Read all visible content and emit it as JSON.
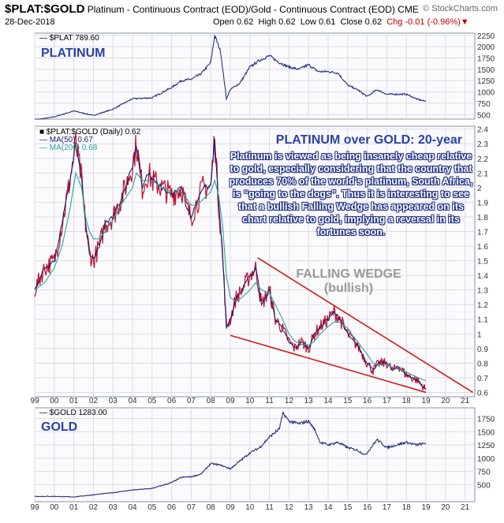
{
  "header": {
    "symbol": "$PLAT:$GOLD",
    "description": "Platinum - Continuous Contract (EOD)/Gold - Continuous Contract (EOD)",
    "exchange": "CME",
    "brand": "© StockCharts.com",
    "date": "28-Dec-2018",
    "open": "Open 0.62",
    "high": "High 0.62",
    "low": "Low 0.61",
    "close": "Close 0.62",
    "chg": "Chg -0.01 (-0.96%)"
  },
  "colors": {
    "price": "#2a2f7a",
    "ratio_ma50": "#1a1f6e",
    "ratio_ma200": "#2aa39a",
    "ratio_line": "#c01030",
    "wedge": "#d41a1a",
    "label": "#2b3fa8",
    "panel_bg": "#ffffff",
    "grid": "#d9dde8"
  },
  "chart_data": [
    {
      "type": "line",
      "panel": "top",
      "title": "PLATINUM",
      "legend": "$PLAT 789.60",
      "x_ticks": [
        "99",
        "00",
        "01",
        "02",
        "03",
        "04",
        "05",
        "06",
        "07",
        "08",
        "09",
        "10",
        "11",
        "12",
        "13",
        "14",
        "15",
        "16",
        "17",
        "18",
        "19",
        "20",
        "21"
      ],
      "y_ticks": [
        500,
        750,
        1000,
        1250,
        1500,
        1750,
        2000,
        2250
      ],
      "ylim": [
        400,
        2300
      ],
      "x": [
        1999.0,
        2000.0,
        2001.0,
        2002.0,
        2003.0,
        2004.0,
        2005.0,
        2006.0,
        2006.5,
        2007.0,
        2007.5,
        2008.0,
        2008.2,
        2008.5,
        2008.8,
        2009.0,
        2009.5,
        2010.0,
        2010.5,
        2011.0,
        2011.5,
        2012.0,
        2012.5,
        2013.0,
        2013.5,
        2014.0,
        2014.5,
        2015.0,
        2015.5,
        2016.0,
        2016.5,
        2017.0,
        2017.5,
        2018.0,
        2018.5,
        2019.0
      ],
      "values": [
        380,
        450,
        580,
        480,
        620,
        850,
        870,
        1100,
        1250,
        1280,
        1400,
        1650,
        2250,
        1900,
        850,
        1050,
        1200,
        1550,
        1700,
        1800,
        1650,
        1550,
        1500,
        1600,
        1450,
        1450,
        1420,
        1150,
        1050,
        900,
        1050,
        950,
        950,
        950,
        850,
        790
      ]
    },
    {
      "type": "line",
      "panel": "middle",
      "title": "PLATINUM over GOLD: 20-year",
      "legend": [
        "$PLAT:$GOLD (Daily) 0.62",
        "MA(50) 0.67",
        "MA(200) 0.68"
      ],
      "x_ticks": [
        "99",
        "00",
        "01",
        "02",
        "03",
        "04",
        "05",
        "06",
        "07",
        "08",
        "09",
        "10",
        "11",
        "12",
        "13",
        "14",
        "15",
        "16",
        "17",
        "18",
        "19",
        "20",
        "21"
      ],
      "y_ticks": [
        0.6,
        0.7,
        0.8,
        0.9,
        1.0,
        1.1,
        1.2,
        1.3,
        1.4,
        1.5,
        1.6,
        1.7,
        1.8,
        1.9,
        2.0,
        2.1,
        2.2,
        2.3,
        2.4
      ],
      "ylim": [
        0.57,
        2.42
      ],
      "x": [
        1999.0,
        1999.5,
        2000.0,
        2000.4,
        2000.8,
        2001.1,
        2001.4,
        2001.6,
        2001.8,
        2002.0,
        2002.3,
        2002.6,
        2003.0,
        2003.5,
        2004.0,
        2004.2,
        2004.5,
        2004.8,
        2005.0,
        2005.5,
        2006.0,
        2006.5,
        2006.8,
        2007.0,
        2007.3,
        2007.6,
        2008.0,
        2008.2,
        2008.4,
        2008.6,
        2008.8,
        2009.0,
        2009.3,
        2009.6,
        2010.0,
        2010.3,
        2010.6,
        2011.0,
        2011.3,
        2011.6,
        2012.0,
        2012.3,
        2012.6,
        2013.0,
        2013.3,
        2013.6,
        2014.0,
        2014.3,
        2014.6,
        2015.0,
        2015.3,
        2015.6,
        2016.0,
        2016.3,
        2016.6,
        2017.0,
        2017.3,
        2017.6,
        2018.0,
        2018.3,
        2018.6,
        2019.0
      ],
      "values": [
        1.3,
        1.45,
        1.5,
        1.75,
        2.05,
        2.3,
        2.05,
        1.75,
        1.55,
        1.5,
        1.6,
        1.75,
        1.8,
        1.95,
        2.15,
        2.3,
        2.0,
        2.1,
        2.05,
        2.0,
        1.95,
        2.0,
        1.85,
        1.8,
        1.9,
        2.0,
        2.0,
        2.35,
        1.9,
        1.55,
        1.05,
        1.1,
        1.25,
        1.3,
        1.4,
        1.45,
        1.2,
        1.3,
        1.1,
        1.05,
        0.95,
        0.9,
        0.95,
        0.9,
        1.0,
        1.05,
        1.1,
        1.15,
        1.1,
        1.0,
        0.95,
        0.9,
        0.8,
        0.75,
        0.8,
        0.8,
        0.75,
        0.78,
        0.72,
        0.7,
        0.68,
        0.62
      ],
      "ma200": [
        1.3,
        1.35,
        1.45,
        1.6,
        1.85,
        2.1,
        2.0,
        1.8,
        1.7,
        1.65,
        1.65,
        1.7,
        1.78,
        1.9,
        2.0,
        2.1,
        2.05,
        2.05,
        2.05,
        2.0,
        1.97,
        1.97,
        1.92,
        1.88,
        1.88,
        1.92,
        1.97,
        2.05,
        1.95,
        1.75,
        1.4,
        1.25,
        1.22,
        1.25,
        1.3,
        1.35,
        1.3,
        1.28,
        1.2,
        1.12,
        1.0,
        0.95,
        0.93,
        0.92,
        0.95,
        1.0,
        1.05,
        1.08,
        1.08,
        1.04,
        0.98,
        0.93,
        0.86,
        0.8,
        0.79,
        0.79,
        0.77,
        0.76,
        0.74,
        0.72,
        0.7,
        0.68
      ],
      "annotations": {
        "wedge_label": "FALLING WEDGE",
        "wedge_sub": "(bullish)",
        "commentary": "Platinum is viewed as being insanely cheap relative to gold, especially considering that the country that produces 70% of the world's platinum, South Africa, is “going to the dogs”. Thus it is interesting to see that a bullish Falling Wedge has appeared on its chart relative to gold, implying a reversal in its fortunes soon."
      },
      "wedge_upper": {
        "x": [
          2010.4,
          2021.4
        ],
        "y": [
          1.52,
          0.6
        ]
      },
      "wedge_lower": {
        "x": [
          2009.0,
          2019.0
        ],
        "y": [
          0.99,
          0.6
        ]
      }
    },
    {
      "type": "line",
      "panel": "bottom",
      "title": "GOLD",
      "legend": "$GOLD 1283.00",
      "x_ticks": [
        "99",
        "00",
        "01",
        "02",
        "03",
        "04",
        "05",
        "06",
        "07",
        "08",
        "09",
        "10",
        "11",
        "12",
        "13",
        "14",
        "15",
        "16",
        "17",
        "18",
        "19",
        "20",
        "21"
      ],
      "y_ticks": [
        500,
        750,
        1000,
        1250,
        1500,
        1750
      ],
      "ylim": [
        180,
        1950
      ],
      "x": [
        1999.0,
        2000.0,
        2001.0,
        2002.0,
        2003.0,
        2004.0,
        2005.0,
        2006.0,
        2006.5,
        2007.0,
        2007.5,
        2008.0,
        2008.5,
        2009.0,
        2009.5,
        2010.0,
        2010.5,
        2011.0,
        2011.5,
        2011.7,
        2012.0,
        2012.5,
        2013.0,
        2013.3,
        2013.6,
        2014.0,
        2014.5,
        2015.0,
        2015.5,
        2015.9,
        2016.5,
        2017.0,
        2017.5,
        2018.0,
        2018.5,
        2019.0
      ],
      "values": [
        280,
        280,
        270,
        310,
        350,
        400,
        430,
        540,
        640,
        650,
        700,
        900,
        870,
        800,
        950,
        1100,
        1200,
        1400,
        1550,
        1850,
        1700,
        1650,
        1700,
        1550,
        1300,
        1250,
        1300,
        1200,
        1150,
        1060,
        1350,
        1200,
        1250,
        1300,
        1250,
        1283
      ]
    }
  ]
}
